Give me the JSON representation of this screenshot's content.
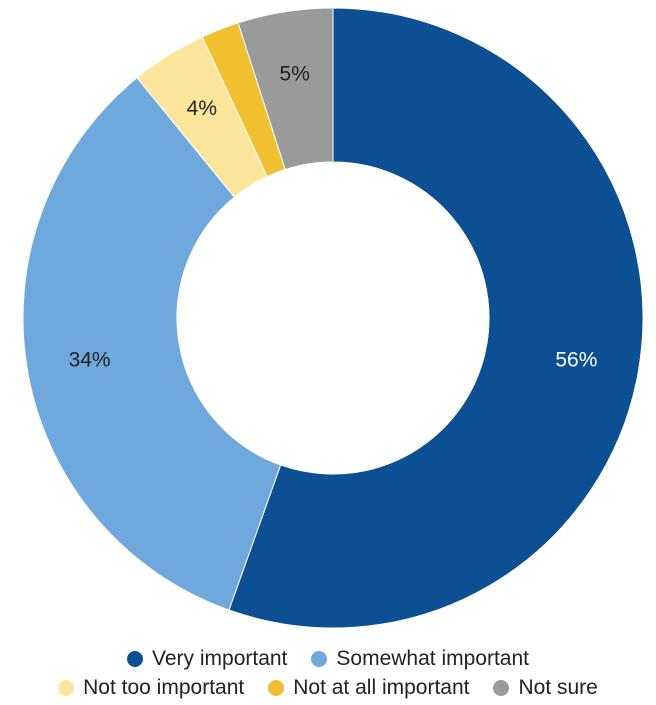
{
  "chart_data": {
    "type": "pie",
    "title": "",
    "donut": true,
    "slices": [
      {
        "label": "Very important",
        "value": 56,
        "value_label": "56%",
        "color": "#0d4f93",
        "label_color": "#ffffff"
      },
      {
        "label": "Somewhat important",
        "value": 34,
        "value_label": "34%",
        "color": "#6fa8dc",
        "label_color": "#222222"
      },
      {
        "label": "Not too important",
        "value": 4,
        "value_label": "4%",
        "color": "#fde59b",
        "label_color": "#222222"
      },
      {
        "label": "Not at all important",
        "value": 2,
        "value_label": "",
        "color": "#f0c030",
        "label_color": "#222222"
      },
      {
        "label": "Not sure",
        "value": 5,
        "value_label": "5%",
        "color": "#9a9a9a",
        "label_color": "#222222"
      }
    ],
    "legend": {
      "placement": "bottom",
      "rows": [
        [
          0,
          1
        ],
        [
          2,
          3,
          4
        ]
      ]
    }
  }
}
